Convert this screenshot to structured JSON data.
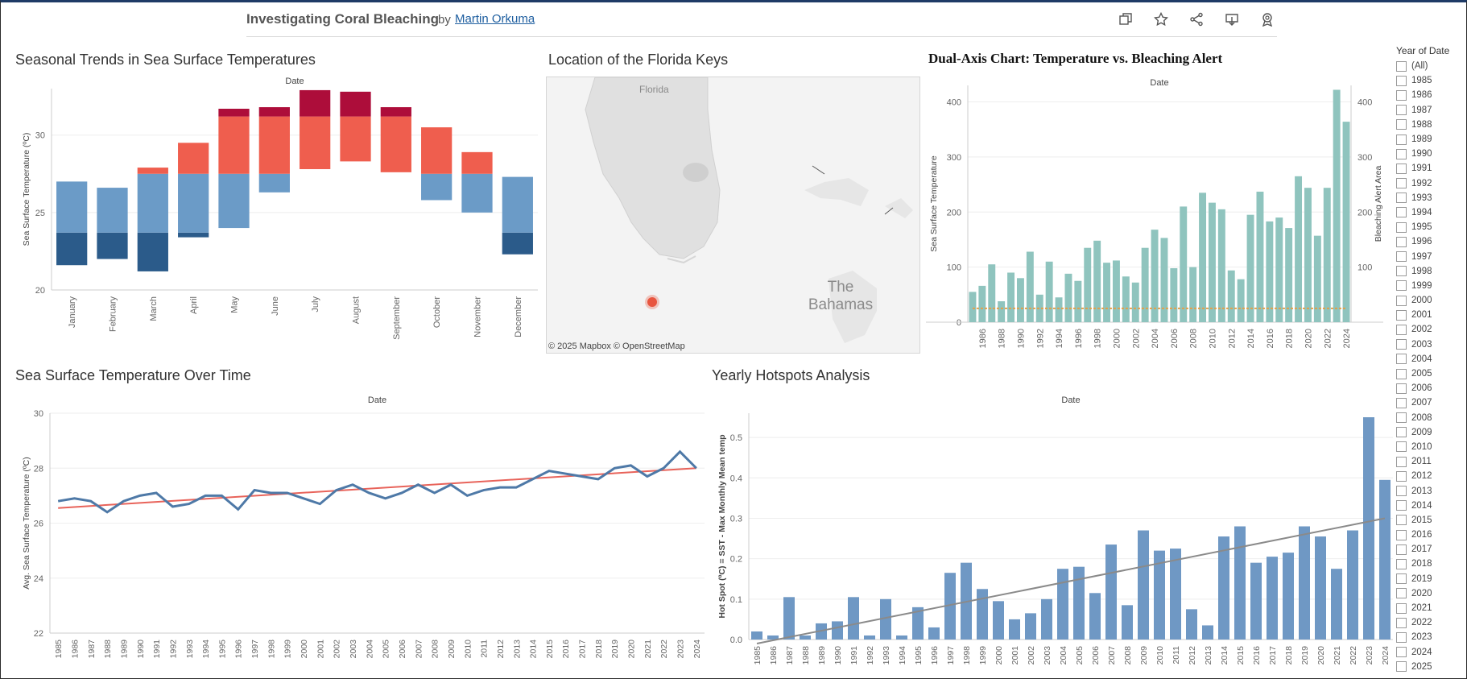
{
  "header": {
    "title": "Investigating Coral Bleaching",
    "by": "by",
    "author": "Martin Orkuma",
    "toolbar_icons": [
      "duplicate-icon",
      "star-icon",
      "share-icon",
      "download-icon",
      "award-icon"
    ]
  },
  "panels": {
    "seasonal": "Seasonal Trends in Sea Surface Temperatures",
    "map": "Location of the Florida Keys",
    "dual": "Dual-Axis Chart: Temperature vs. Bleaching Alert",
    "overtime": "Sea Surface Temperature Over Time",
    "hotspots": "Yearly Hotspots Analysis"
  },
  "map": {
    "label_florida": "Florida",
    "label_bahamas": "The Bahamas",
    "attribution": "© 2025 Mapbox  © OpenStreetMap",
    "marker_color": "#e8553f"
  },
  "filter": {
    "title": "Year of Date",
    "all": "(All)",
    "years": [
      "1985",
      "1986",
      "1987",
      "1988",
      "1989",
      "1990",
      "1991",
      "1992",
      "1993",
      "1994",
      "1995",
      "1996",
      "1997",
      "1998",
      "1999",
      "2000",
      "2001",
      "2002",
      "2003",
      "2004",
      "2005",
      "2006",
      "2007",
      "2008",
      "2009",
      "2010",
      "2011",
      "2012",
      "2013",
      "2014",
      "2015",
      "2016",
      "2017",
      "2018",
      "2019",
      "2020",
      "2021",
      "2022",
      "2023",
      "2024",
      "2025"
    ]
  },
  "chart_data": [
    {
      "id": "seasonal",
      "type": "bar",
      "subtitle": "Date",
      "ylabel": "Sea Surface Temperature (ºC)",
      "ylim": [
        20,
        33
      ],
      "yticks": [
        20,
        25,
        30
      ],
      "categories": [
        "January",
        "February",
        "March",
        "April",
        "May",
        "June",
        "July",
        "August",
        "September",
        "October",
        "November",
        "December"
      ],
      "min": [
        21.6,
        22.0,
        21.2,
        23.4,
        24.0,
        26.3,
        27.8,
        28.3,
        27.6,
        25.8,
        25.0,
        22.3
      ],
      "max": [
        27.0,
        26.6,
        27.9,
        29.5,
        31.7,
        31.8,
        32.9,
        32.8,
        31.8,
        30.5,
        28.9,
        27.3
      ],
      "colors": {
        "cold_dark": "#2b5b8a",
        "cold": "#6b9bc7",
        "warm": "#ef5e4e",
        "hot": "#ad0d3a"
      }
    },
    {
      "id": "dual",
      "type": "bar",
      "subtitle": "Date",
      "ylabel": "Sea Surface Temperature",
      "ylabel_right": "Bleaching Alert Area",
      "ylim": [
        0,
        430
      ],
      "yticks": [
        0,
        100,
        200,
        300,
        400
      ],
      "x": [
        1985,
        1986,
        1987,
        1988,
        1989,
        1990,
        1991,
        1992,
        1993,
        1994,
        1995,
        1996,
        1997,
        1998,
        1999,
        2000,
        2001,
        2002,
        2003,
        2004,
        2005,
        2006,
        2007,
        2008,
        2009,
        2010,
        2011,
        2012,
        2013,
        2014,
        2015,
        2016,
        2017,
        2018,
        2019,
        2020,
        2021,
        2022,
        2023,
        2024
      ],
      "xticks": [
        "1986",
        "1988",
        "1990",
        "1992",
        "1994",
        "1996",
        "1998",
        "2000",
        "2002",
        "2004",
        "2006",
        "2008",
        "2010",
        "2012",
        "2014",
        "2016",
        "2018",
        "2020",
        "2022",
        "2024"
      ],
      "values": [
        55,
        66,
        105,
        38,
        90,
        80,
        128,
        50,
        110,
        45,
        88,
        75,
        135,
        148,
        108,
        112,
        83,
        72,
        135,
        168,
        153,
        98,
        210,
        100,
        235,
        217,
        205,
        94,
        78,
        195,
        237,
        183,
        190,
        171,
        265,
        244,
        157,
        244,
        422,
        364
      ],
      "line_values": [
        25,
        25,
        25,
        25,
        25,
        25,
        25,
        25,
        25,
        25,
        25,
        25,
        25,
        25,
        25,
        25,
        25,
        25,
        25,
        25,
        25,
        25,
        25,
        25,
        25,
        25,
        25,
        25,
        25,
        25,
        25,
        25,
        25,
        25,
        25,
        25,
        25,
        25,
        25,
        25
      ],
      "colors": {
        "bar": "#8fc4be",
        "line": "#e3a04a"
      }
    },
    {
      "id": "overtime",
      "type": "line",
      "subtitle": "Date",
      "ylabel": "Avg. Sea Surface Temperature (ºC)",
      "ylim": [
        22,
        30
      ],
      "yticks": [
        22,
        24,
        26,
        28,
        30
      ],
      "x": [
        "1985",
        "1986",
        "1987",
        "1988",
        "1989",
        "1990",
        "1991",
        "1992",
        "1993",
        "1994",
        "1995",
        "1996",
        "1997",
        "1998",
        "1999",
        "2000",
        "2001",
        "2002",
        "2003",
        "2004",
        "2005",
        "2006",
        "2007",
        "2008",
        "2009",
        "2010",
        "2011",
        "2012",
        "2013",
        "2014",
        "2015",
        "2016",
        "2017",
        "2018",
        "2019",
        "2020",
        "2021",
        "2022",
        "2023",
        "2024"
      ],
      "values": [
        26.8,
        26.9,
        26.8,
        26.4,
        26.8,
        27.0,
        27.1,
        26.6,
        26.7,
        27.0,
        27.0,
        26.5,
        27.2,
        27.1,
        27.1,
        26.9,
        26.7,
        27.2,
        27.4,
        27.1,
        26.9,
        27.1,
        27.4,
        27.1,
        27.4,
        27.0,
        27.2,
        27.3,
        27.3,
        27.6,
        27.9,
        27.8,
        27.7,
        27.6,
        28.0,
        28.1,
        27.7,
        28.0,
        28.6,
        28.0
      ],
      "trend": [
        26.55,
        28.0
      ],
      "colors": {
        "line": "#4e79a7",
        "trend": "#e8635a"
      }
    },
    {
      "id": "hotspots",
      "type": "bar",
      "subtitle": "Date",
      "ylabel": "Hot Spot (ºC) = SST - Max Monthly Mean temp",
      "ylim": [
        0,
        0.56
      ],
      "yticks": [
        0.0,
        0.1,
        0.2,
        0.3,
        0.4,
        0.5
      ],
      "x": [
        "1985",
        "1986",
        "1987",
        "1988",
        "1989",
        "1990",
        "1991",
        "1992",
        "1993",
        "1994",
        "1995",
        "1996",
        "1997",
        "1998",
        "1999",
        "2000",
        "2001",
        "2002",
        "2003",
        "2004",
        "2005",
        "2006",
        "2007",
        "2008",
        "2009",
        "2010",
        "2011",
        "2012",
        "2013",
        "2014",
        "2015",
        "2016",
        "2017",
        "2018",
        "2019",
        "2020",
        "2021",
        "2022",
        "2023",
        "2024"
      ],
      "values": [
        0.02,
        0.01,
        0.105,
        0.01,
        0.04,
        0.045,
        0.105,
        0.01,
        0.1,
        0.01,
        0.08,
        0.03,
        0.165,
        0.19,
        0.125,
        0.095,
        0.05,
        0.065,
        0.1,
        0.175,
        0.18,
        0.115,
        0.235,
        0.085,
        0.27,
        0.22,
        0.225,
        0.075,
        0.035,
        0.255,
        0.28,
        0.19,
        0.205,
        0.215,
        0.28,
        0.255,
        0.175,
        0.27,
        0.55,
        0.395
      ],
      "trend": [
        -0.01,
        0.3
      ],
      "colors": {
        "bar": "#6f98c4",
        "trend": "#8a8a8a"
      }
    }
  ]
}
